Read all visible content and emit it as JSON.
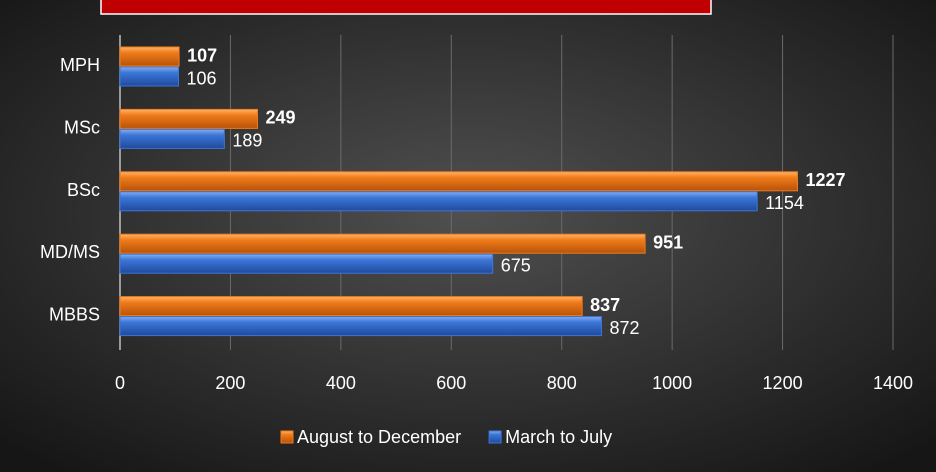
{
  "chart_data": {
    "type": "hbar",
    "categories": [
      "MPH",
      "MSc",
      "BSc",
      "MD/MS",
      "MBBS"
    ],
    "series": [
      {
        "name": "August to December",
        "color": "#f07c1a",
        "values": [
          107,
          249,
          1227,
          951,
          837
        ]
      },
      {
        "name": "March to July",
        "color": "#3c76d8",
        "values": [
          106,
          189,
          1154,
          675,
          872
        ]
      }
    ],
    "xlim": [
      0,
      1400
    ],
    "xticks": [
      0,
      200,
      400,
      600,
      800,
      1000,
      1200,
      1400
    ],
    "grid": true,
    "legend": "bottom"
  }
}
